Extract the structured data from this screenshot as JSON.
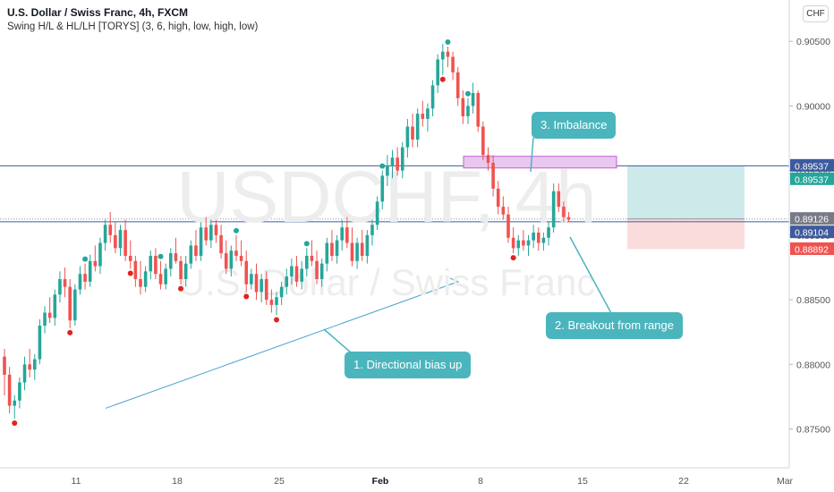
{
  "header": {
    "symbol_line": "U.S. Dollar / Swiss Franc, 4h, FXCM",
    "indicator_line": "Swing H/L & HL/LH [TORYS] (3, 6, high, low, high, low)"
  },
  "currency_button": "CHF",
  "watermark": {
    "symbol": "USDCHF, 4h",
    "name": "U.S. Dollar / Swiss Franc"
  },
  "callouts": {
    "directional": "1. Directional bias up",
    "breakout": "2. Breakout from range",
    "imbalance": "3. Imbalance"
  },
  "colors": {
    "up": "#26a69a",
    "down": "#ef5350",
    "callout_bg": "#4bb5bd",
    "trendline": "#4ba3cf",
    "hline": "#3d5a9e",
    "imbalance_fill": "#e9c8ef",
    "imbalance_stroke": "#c15bd4",
    "target_zone": "#cde9ea",
    "stop_zone": "#fbdcdc"
  },
  "chart_data": {
    "type": "candlestick",
    "timeframe": "4h",
    "y_axis": {
      "ticks": [
        "0.90500",
        "0.90000",
        "0.89500",
        "0.89000",
        "0.88500",
        "0.88000",
        "0.87500"
      ],
      "tick_values": [
        0.905,
        0.9,
        0.895,
        0.89,
        0.885,
        0.88,
        0.875
      ],
      "range": [
        0.8722,
        0.9082
      ]
    },
    "x_axis": {
      "labels": [
        "11",
        "18",
        "25",
        "Feb",
        "8",
        "15",
        "22",
        "Mar"
      ],
      "bold_labels": [
        "Feb"
      ]
    },
    "price_labels": [
      {
        "text": "0.89537",
        "value": 0.89537,
        "color": "#3d5a9e"
      },
      {
        "text": "0.89537",
        "value": 0.89537,
        "color": "#26a69a"
      },
      {
        "text": "0.89126",
        "value": 0.89126,
        "color": "#787b86"
      },
      {
        "text": "0.89104",
        "value": 0.89104,
        "color": "#3d5a9e"
      },
      {
        "text": "0.88892",
        "value": 0.88892,
        "color": "#ef5350"
      }
    ],
    "horizontal_lines": [
      0.89537,
      0.89104
    ],
    "imbalance_zone": {
      "from": 0.8961,
      "to": 0.8952
    },
    "position": {
      "entry": 0.89126,
      "target": 0.89537,
      "stop": 0.88892
    },
    "trendline": {
      "from": 0.8766,
      "to": 0.8864
    },
    "candles": [
      [
        0.8806,
        0.8812,
        0.8776,
        0.8792
      ],
      [
        0.8792,
        0.8798,
        0.8762,
        0.8768
      ],
      [
        0.8768,
        0.8776,
        0.8758,
        0.8772
      ],
      [
        0.8772,
        0.879,
        0.8766,
        0.8786
      ],
      [
        0.8786,
        0.8806,
        0.878,
        0.88
      ],
      [
        0.88,
        0.8812,
        0.879,
        0.8796
      ],
      [
        0.8796,
        0.8808,
        0.8788,
        0.8804
      ],
      [
        0.8804,
        0.8835,
        0.88,
        0.883
      ],
      [
        0.883,
        0.8845,
        0.8824,
        0.884
      ],
      [
        0.884,
        0.8852,
        0.8832,
        0.8836
      ],
      [
        0.8836,
        0.8858,
        0.883,
        0.8854
      ],
      [
        0.8854,
        0.8872,
        0.8848,
        0.8866
      ],
      [
        0.8866,
        0.8875,
        0.8852,
        0.886
      ],
      [
        0.886,
        0.8866,
        0.8828,
        0.8834
      ],
      [
        0.8834,
        0.8862,
        0.883,
        0.8858
      ],
      [
        0.8858,
        0.8876,
        0.8854,
        0.887
      ],
      [
        0.887,
        0.8878,
        0.8858,
        0.8864
      ],
      [
        0.8864,
        0.8885,
        0.886,
        0.888
      ],
      [
        0.888,
        0.8892,
        0.8872,
        0.8876
      ],
      [
        0.8876,
        0.8898,
        0.887,
        0.8894
      ],
      [
        0.8894,
        0.8912,
        0.8888,
        0.8908
      ],
      [
        0.8908,
        0.8918,
        0.8894,
        0.89
      ],
      [
        0.89,
        0.891,
        0.8886,
        0.889
      ],
      [
        0.889,
        0.8908,
        0.8884,
        0.8904
      ],
      [
        0.8904,
        0.8912,
        0.888,
        0.8884
      ],
      [
        0.8884,
        0.8896,
        0.8874,
        0.888
      ],
      [
        0.888,
        0.8884,
        0.886,
        0.8866
      ],
      [
        0.8866,
        0.888,
        0.8854,
        0.886
      ],
      [
        0.886,
        0.8876,
        0.8856,
        0.8872
      ],
      [
        0.8872,
        0.8888,
        0.8866,
        0.8884
      ],
      [
        0.8884,
        0.889,
        0.8866,
        0.887
      ],
      [
        0.887,
        0.888,
        0.8858,
        0.8862
      ],
      [
        0.8862,
        0.8878,
        0.8858,
        0.8874
      ],
      [
        0.8874,
        0.889,
        0.8868,
        0.8886
      ],
      [
        0.8886,
        0.8898,
        0.8878,
        0.888
      ],
      [
        0.888,
        0.8884,
        0.8862,
        0.8866
      ],
      [
        0.8866,
        0.8884,
        0.886,
        0.8878
      ],
      [
        0.8878,
        0.8896,
        0.8874,
        0.8892
      ],
      [
        0.8892,
        0.8904,
        0.888,
        0.8884
      ],
      [
        0.8884,
        0.891,
        0.888,
        0.8906
      ],
      [
        0.8906,
        0.8914,
        0.8892,
        0.8896
      ],
      [
        0.8896,
        0.8912,
        0.889,
        0.8908
      ],
      [
        0.8908,
        0.8912,
        0.8894,
        0.89
      ],
      [
        0.89,
        0.8908,
        0.8882,
        0.8886
      ],
      [
        0.8886,
        0.8896,
        0.887,
        0.8874
      ],
      [
        0.8874,
        0.8892,
        0.8868,
        0.8888
      ],
      [
        0.8888,
        0.89,
        0.888,
        0.8884
      ],
      [
        0.8884,
        0.8896,
        0.8876,
        0.888
      ],
      [
        0.888,
        0.8888,
        0.8856,
        0.8862
      ],
      [
        0.8862,
        0.8874,
        0.8858,
        0.887
      ],
      [
        0.887,
        0.8878,
        0.885,
        0.8856
      ],
      [
        0.8856,
        0.887,
        0.8848,
        0.8866
      ],
      [
        0.8866,
        0.8872,
        0.8846,
        0.885
      ],
      [
        0.885,
        0.8858,
        0.884,
        0.8846
      ],
      [
        0.8846,
        0.8856,
        0.8838,
        0.8852
      ],
      [
        0.8852,
        0.8864,
        0.8846,
        0.886
      ],
      [
        0.886,
        0.8874,
        0.8854,
        0.8868
      ],
      [
        0.8868,
        0.8882,
        0.8862,
        0.8876
      ],
      [
        0.8876,
        0.8884,
        0.886,
        0.8864
      ],
      [
        0.8864,
        0.888,
        0.8858,
        0.8874
      ],
      [
        0.8874,
        0.889,
        0.8868,
        0.8884
      ],
      [
        0.8884,
        0.8896,
        0.8876,
        0.888
      ],
      [
        0.888,
        0.8888,
        0.8862,
        0.8866
      ],
      [
        0.8866,
        0.8882,
        0.886,
        0.8878
      ],
      [
        0.8878,
        0.8898,
        0.8872,
        0.8894
      ],
      [
        0.8894,
        0.8904,
        0.888,
        0.8884
      ],
      [
        0.8884,
        0.89,
        0.8878,
        0.8896
      ],
      [
        0.8896,
        0.8912,
        0.8888,
        0.8906
      ],
      [
        0.8906,
        0.8914,
        0.889,
        0.8894
      ],
      [
        0.8894,
        0.8906,
        0.8876,
        0.888
      ],
      [
        0.888,
        0.8898,
        0.8874,
        0.8894
      ],
      [
        0.8894,
        0.8904,
        0.888,
        0.8884
      ],
      [
        0.8884,
        0.8904,
        0.8878,
        0.89
      ],
      [
        0.89,
        0.8912,
        0.8892,
        0.8908
      ],
      [
        0.8908,
        0.893,
        0.8904,
        0.8926
      ],
      [
        0.8926,
        0.895,
        0.892,
        0.8946
      ],
      [
        0.8946,
        0.8962,
        0.8938,
        0.8954
      ],
      [
        0.8954,
        0.8966,
        0.8944,
        0.896
      ],
      [
        0.896,
        0.8968,
        0.8946,
        0.895
      ],
      [
        0.895,
        0.8972,
        0.8944,
        0.8968
      ],
      [
        0.8968,
        0.899,
        0.896,
        0.8984
      ],
      [
        0.8984,
        0.8994,
        0.8968,
        0.8974
      ],
      [
        0.8974,
        0.8998,
        0.8968,
        0.8994
      ],
      [
        0.8994,
        0.9004,
        0.8984,
        0.899
      ],
      [
        0.899,
        0.9002,
        0.898,
        0.8998
      ],
      [
        0.8998,
        0.902,
        0.8992,
        0.9016
      ],
      [
        0.9016,
        0.904,
        0.901,
        0.9036
      ],
      [
        0.9036,
        0.9048,
        0.9024,
        0.9042
      ],
      [
        0.9042,
        0.9046,
        0.903,
        0.9038
      ],
      [
        0.9038,
        0.9042,
        0.902,
        0.9026
      ],
      [
        0.9026,
        0.903,
        0.9,
        0.9006
      ],
      [
        0.9006,
        0.9012,
        0.8986,
        0.8992
      ],
      [
        0.8992,
        0.9006,
        0.8986,
        0.9
      ],
      [
        0.9,
        0.9018,
        0.8994,
        0.901
      ],
      [
        0.901,
        0.9012,
        0.898,
        0.8984
      ],
      [
        0.8984,
        0.8988,
        0.8958,
        0.8962
      ],
      [
        0.8962,
        0.8968,
        0.895,
        0.8956
      ],
      [
        0.8956,
        0.8962,
        0.893,
        0.8936
      ],
      [
        0.8936,
        0.8942,
        0.8916,
        0.8922
      ],
      [
        0.8922,
        0.893,
        0.8912,
        0.8916
      ],
      [
        0.8916,
        0.8922,
        0.8894,
        0.8898
      ],
      [
        0.8898,
        0.8906,
        0.8886,
        0.889
      ],
      [
        0.889,
        0.89,
        0.8884,
        0.8896
      ],
      [
        0.8896,
        0.8904,
        0.8888,
        0.8892
      ],
      [
        0.8892,
        0.89,
        0.8884,
        0.8896
      ],
      [
        0.8896,
        0.8908,
        0.889,
        0.8902
      ],
      [
        0.8902,
        0.8906,
        0.8888,
        0.8894
      ],
      [
        0.8894,
        0.8902,
        0.8888,
        0.8898
      ],
      [
        0.8898,
        0.891,
        0.8892,
        0.8906
      ],
      [
        0.8906,
        0.894,
        0.8902,
        0.8934
      ],
      [
        0.8934,
        0.894,
        0.8918,
        0.8922
      ],
      [
        0.8922,
        0.8926,
        0.891,
        0.8914
      ],
      [
        0.8914,
        0.8918,
        0.891,
        0.8912
      ]
    ],
    "swing_highs": [
      16,
      31,
      46,
      60,
      75,
      88,
      92
    ],
    "swing_lows": [
      2,
      13,
      25,
      35,
      48,
      54,
      87,
      101
    ]
  }
}
